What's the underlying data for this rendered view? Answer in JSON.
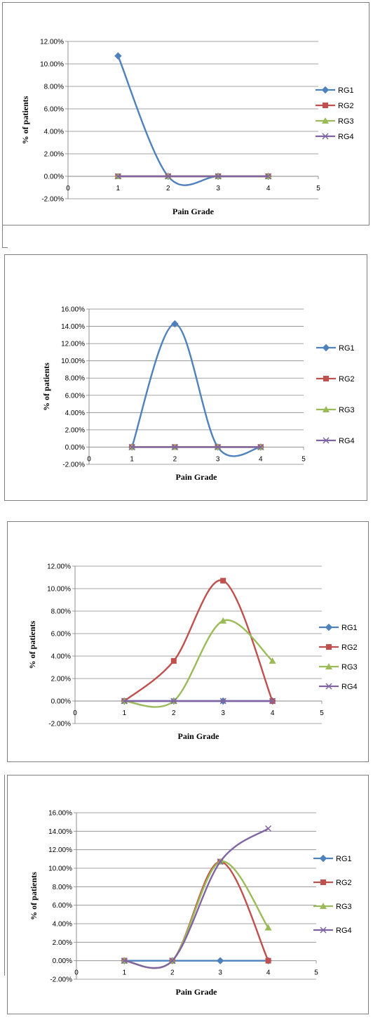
{
  "colors": {
    "RG1": "#4f81bd",
    "RG2": "#c0504d",
    "RG3": "#9bbb59",
    "RG4": "#8064a2",
    "grid": "#868686",
    "axis": "#868686",
    "frame": "#7f7f7f"
  },
  "markers": {
    "RG1": "diamond",
    "RG2": "square",
    "RG3": "triangle",
    "RG4": "x"
  },
  "chart_data": [
    {
      "type": "line",
      "smooth": true,
      "xlabel": "Pain Grade",
      "ylabel": "% of patients",
      "xlim": [
        0,
        5
      ],
      "xticks": [
        "0",
        "1",
        "2",
        "3",
        "4",
        "5"
      ],
      "ylim": [
        -2,
        12
      ],
      "yticks": [
        "-2.00%",
        "0.00%",
        "2.00%",
        "4.00%",
        "6.00%",
        "8.00%",
        "10.00%",
        "12.00%"
      ],
      "grid": "horizontal",
      "legend": "right",
      "x": [
        1,
        2,
        3,
        4
      ],
      "series": [
        {
          "name": "RG1",
          "values": [
            10.71,
            0,
            0,
            0
          ]
        },
        {
          "name": "RG2",
          "values": [
            0,
            0,
            0,
            0
          ]
        },
        {
          "name": "RG3",
          "values": [
            0,
            0,
            0,
            0
          ]
        },
        {
          "name": "RG4",
          "values": [
            0,
            0,
            0,
            0
          ]
        }
      ]
    },
    {
      "type": "line",
      "smooth": true,
      "xlabel": "Pain Grade",
      "ylabel": "% of patients",
      "xlim": [
        0,
        5
      ],
      "xticks": [
        "0",
        "1",
        "2",
        "3",
        "4",
        "5"
      ],
      "ylim": [
        -2,
        16
      ],
      "yticks": [
        "-2.00%",
        "0.00%",
        "2.00%",
        "4.00%",
        "6.00%",
        "8.00%",
        "10.00%",
        "12.00%",
        "14.00%",
        "16.00%"
      ],
      "grid": "horizontal",
      "legend": "right",
      "x": [
        1,
        2,
        3,
        4
      ],
      "series": [
        {
          "name": "RG1",
          "values": [
            0,
            14.29,
            0,
            0
          ]
        },
        {
          "name": "RG2",
          "values": [
            0,
            0,
            0,
            0
          ]
        },
        {
          "name": "RG3",
          "values": [
            0,
            0,
            0,
            0
          ]
        },
        {
          "name": "RG4",
          "values": [
            0,
            0,
            0,
            0
          ]
        }
      ]
    },
    {
      "type": "line",
      "smooth": true,
      "xlabel": "Pain Grade",
      "ylabel": "% of patients",
      "xlim": [
        0,
        5
      ],
      "xticks": [
        "0",
        "1",
        "2",
        "3",
        "4",
        "5"
      ],
      "ylim": [
        -2,
        12
      ],
      "yticks": [
        "-2.00%",
        "0.00%",
        "2.00%",
        "4.00%",
        "6.00%",
        "8.00%",
        "10.00%",
        "12.00%"
      ],
      "grid": "horizontal",
      "legend": "right",
      "x": [
        1,
        2,
        3,
        4
      ],
      "series": [
        {
          "name": "RG1",
          "values": [
            0,
            0,
            0,
            0
          ]
        },
        {
          "name": "RG2",
          "values": [
            0,
            3.57,
            10.71,
            0
          ]
        },
        {
          "name": "RG3",
          "values": [
            0,
            0,
            7.14,
            3.57
          ]
        },
        {
          "name": "RG4",
          "values": [
            0,
            0,
            0,
            0
          ]
        }
      ]
    },
    {
      "type": "line",
      "smooth": true,
      "xlabel": "Pain Grade",
      "ylabel": "% of patients",
      "xlim": [
        0,
        5
      ],
      "xticks": [
        "0",
        "1",
        "2",
        "3",
        "4",
        "5"
      ],
      "ylim": [
        -2,
        16
      ],
      "yticks": [
        "-2.00%",
        "0.00%",
        "2.00%",
        "4.00%",
        "6.00%",
        "8.00%",
        "10.00%",
        "12.00%",
        "14.00%",
        "16.00%"
      ],
      "grid": "horizontal",
      "legend": "right",
      "x": [
        1,
        2,
        3,
        4
      ],
      "series": [
        {
          "name": "RG1",
          "values": [
            0,
            0,
            0,
            0
          ]
        },
        {
          "name": "RG2",
          "values": [
            0,
            0,
            10.71,
            0
          ]
        },
        {
          "name": "RG3",
          "values": [
            0,
            0,
            10.71,
            3.57
          ]
        },
        {
          "name": "RG4",
          "values": [
            0,
            0,
            10.71,
            14.29
          ]
        }
      ]
    }
  ]
}
